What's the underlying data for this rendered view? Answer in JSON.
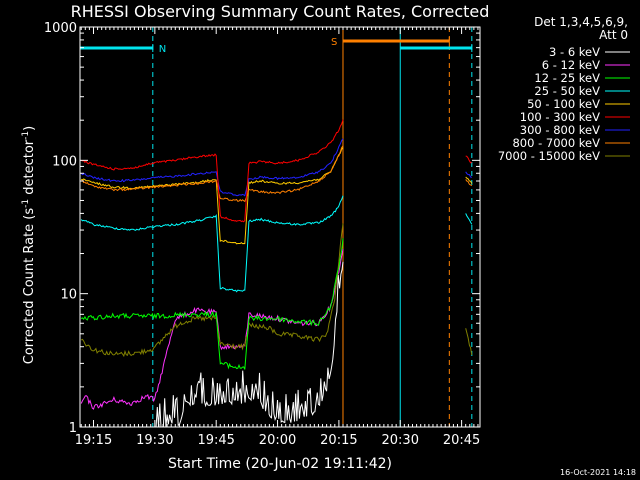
{
  "chart_data": {
    "type": "line",
    "title": "RHESSI Observing Summary Count Rates, Corrected",
    "xlabel": "Start Time (20-Jun-02 19:11:42)",
    "ylabel_main": "Corrected Count Rate (s",
    "ylabel_sup1": "-1",
    "ylabel_mid": " detector",
    "ylabel_sup2": "-1",
    "ylabel_end": ")",
    "y_scale": "log",
    "ylim": [
      1,
      1000
    ],
    "xlim": [
      "19:11:42",
      "20:49:30"
    ],
    "x_ticks": [
      "19:15",
      "19:30",
      "19:45",
      "20:00",
      "20:15",
      "20:30",
      "20:45"
    ],
    "y_ticks": [
      "1",
      "10",
      "100",
      "1000"
    ],
    "timestamp": "16-Oct-2021 14:18",
    "legend_title_1": "Det 1,3,4,5,6,9,",
    "legend_title_2": "Att 0",
    "legend_position": "top-right",
    "markers": {
      "night_label": "N",
      "saa_label": "S",
      "night_color": "#00e5ee",
      "saa_color": "#ff8000",
      "night_intervals": [
        [
          "19:11:42",
          "19:29:30"
        ],
        [
          "20:30:00",
          "20:47:30"
        ]
      ],
      "saa_interval": [
        "20:16:00",
        "20:42:00"
      ],
      "solid_lines": [
        {
          "t": "19:11:42",
          "color": "#00e5ee"
        },
        {
          "t": "20:16:00",
          "color": "#ff8000"
        },
        {
          "t": "20:30:00",
          "color": "#00e5ee"
        }
      ],
      "dashed_lines": [
        {
          "t": "19:29:30",
          "color": "#00e5ee"
        },
        {
          "t": "20:42:00",
          "color": "#ff8000"
        },
        {
          "t": "20:47:30",
          "color": "#00e5ee"
        }
      ]
    },
    "series": [
      {
        "name": "3 - 6 keV",
        "color": "#ffffff",
        "points": [
          [
            "19:13:00",
            1.0
          ],
          [
            "19:30:00",
            1.0
          ],
          [
            "19:36:00",
            1.05
          ],
          [
            "19:37:30",
            1.5
          ],
          [
            "19:45:00",
            1.5
          ],
          [
            "19:55:00",
            1.6
          ],
          [
            "20:00:00",
            1.05
          ],
          [
            "20:08:00",
            1.2
          ],
          [
            "20:12:00",
            1.8
          ],
          [
            "20:13:30",
            3
          ],
          [
            "20:14:30",
            7
          ],
          [
            "20:15:30",
            14
          ],
          [
            "20:16:00",
            17
          ]
        ]
      },
      {
        "name": "6 - 12 keV",
        "color": "#ff33ff",
        "points": [
          [
            "19:12:00",
            1.5
          ],
          [
            "19:13:00",
            1.7
          ],
          [
            "19:15:00",
            1.4
          ],
          [
            "19:20:00",
            1.6
          ],
          [
            "19:24:00",
            1.5
          ],
          [
            "19:28:00",
            1.7
          ],
          [
            "19:30:00",
            1.6
          ],
          [
            "19:35:00",
            6.5
          ],
          [
            "19:40:00",
            7.5
          ],
          [
            "19:45:00",
            7.2
          ],
          [
            "19:46:00",
            4
          ],
          [
            "19:52:00",
            4
          ],
          [
            "19:53:00",
            7
          ],
          [
            "20:00:00",
            6.5
          ],
          [
            "20:05:00",
            6
          ],
          [
            "20:10:00",
            6
          ],
          [
            "20:13:00",
            8
          ],
          [
            "20:15:00",
            15
          ],
          [
            "20:16:00",
            22
          ]
        ]
      },
      {
        "name": "12 - 25 keV",
        "color": "#00ff00",
        "points": [
          [
            "19:12:00",
            6.5
          ],
          [
            "19:20:00",
            6.8
          ],
          [
            "19:30:00",
            6.8
          ],
          [
            "19:40:00",
            7
          ],
          [
            "19:45:00",
            7
          ],
          [
            "19:46:00",
            3
          ],
          [
            "19:50:00",
            2.8
          ],
          [
            "19:52:00",
            2.8
          ],
          [
            "19:53:00",
            6.5
          ],
          [
            "20:00:00",
            6.5
          ],
          [
            "20:05:00",
            6.2
          ],
          [
            "20:10:00",
            6
          ],
          [
            "20:13:00",
            8
          ],
          [
            "20:15:00",
            16
          ],
          [
            "20:16:00",
            25
          ]
        ]
      },
      {
        "name": "25 - 50 keV",
        "color": "#00ffff",
        "points": [
          [
            "19:12:00",
            36
          ],
          [
            "19:15:00",
            33
          ],
          [
            "19:20:00",
            31
          ],
          [
            "19:25:00",
            30
          ],
          [
            "19:30:00",
            32
          ],
          [
            "19:35:00",
            33
          ],
          [
            "19:40:00",
            35
          ],
          [
            "19:45:00",
            38
          ],
          [
            "19:46:00",
            11
          ],
          [
            "19:50:00",
            10.5
          ],
          [
            "19:52:00",
            10.5
          ],
          [
            "19:53:00",
            35
          ],
          [
            "19:56:00",
            36
          ],
          [
            "20:00:00",
            34
          ],
          [
            "20:05:00",
            33
          ],
          [
            "20:10:00",
            34
          ],
          [
            "20:13:00",
            38
          ],
          [
            "20:15:00",
            45
          ],
          [
            "20:16:00",
            55
          ],
          [
            "20:46:00",
            40
          ],
          [
            "20:47:30",
            33
          ]
        ]
      },
      {
        "name": "50 - 100 keV",
        "color": "#ffcc00",
        "points": [
          [
            "19:12:00",
            72
          ],
          [
            "19:15:00",
            68
          ],
          [
            "19:20:00",
            63
          ],
          [
            "19:25:00",
            62
          ],
          [
            "19:30:00",
            64
          ],
          [
            "19:35:00",
            66
          ],
          [
            "19:40:00",
            68
          ],
          [
            "19:45:00",
            72
          ],
          [
            "19:46:00",
            25
          ],
          [
            "19:50:00",
            24
          ],
          [
            "19:52:00",
            24
          ],
          [
            "19:53:00",
            68
          ],
          [
            "19:56:00",
            70
          ],
          [
            "20:00:00",
            67
          ],
          [
            "20:05:00",
            68
          ],
          [
            "20:10:00",
            72
          ],
          [
            "20:13:00",
            82
          ],
          [
            "20:15:00",
            110
          ],
          [
            "20:16:00",
            125
          ],
          [
            "20:46:00",
            75
          ],
          [
            "20:47:30",
            68
          ]
        ]
      },
      {
        "name": "100 - 300 keV",
        "color": "#ff0000",
        "points": [
          [
            "19:12:00",
            100
          ],
          [
            "19:15:00",
            93
          ],
          [
            "19:20:00",
            86
          ],
          [
            "19:25:00",
            88
          ],
          [
            "19:30:00",
            96
          ],
          [
            "19:35:00",
            100
          ],
          [
            "19:40:00",
            106
          ],
          [
            "19:45:00",
            110
          ],
          [
            "19:46:00",
            38
          ],
          [
            "19:50:00",
            35
          ],
          [
            "19:52:00",
            35
          ],
          [
            "19:53:00",
            95
          ],
          [
            "19:56:00",
            98
          ],
          [
            "20:00:00",
            95
          ],
          [
            "20:05:00",
            100
          ],
          [
            "20:10:00",
            115
          ],
          [
            "20:13:00",
            135
          ],
          [
            "20:15:00",
            170
          ],
          [
            "20:16:00",
            200
          ],
          [
            "20:46:00",
            108
          ],
          [
            "20:47:30",
            95
          ]
        ]
      },
      {
        "name": "300 - 800 keV",
        "color": "#2222ff",
        "points": [
          [
            "19:12:00",
            80
          ],
          [
            "19:15:00",
            74
          ],
          [
            "19:20:00",
            70
          ],
          [
            "19:25:00",
            71
          ],
          [
            "19:30:00",
            74
          ],
          [
            "19:35:00",
            76
          ],
          [
            "19:40:00",
            79
          ],
          [
            "19:45:00",
            82
          ],
          [
            "19:46:00",
            58
          ],
          [
            "19:50:00",
            55
          ],
          [
            "19:52:00",
            55
          ],
          [
            "19:53:00",
            72
          ],
          [
            "19:56:00",
            75
          ],
          [
            "20:00:00",
            73
          ],
          [
            "20:05:00",
            74
          ],
          [
            "20:10:00",
            82
          ],
          [
            "20:13:00",
            95
          ],
          [
            "20:15:00",
            125
          ],
          [
            "20:16:00",
            145
          ],
          [
            "20:46:00",
            82
          ],
          [
            "20:47:30",
            74
          ]
        ]
      },
      {
        "name": "800 - 7000 keV",
        "color": "#ff8000",
        "points": [
          [
            "19:12:00",
            70
          ],
          [
            "19:15:00",
            64
          ],
          [
            "19:20:00",
            60
          ],
          [
            "19:25:00",
            61
          ],
          [
            "19:30:00",
            63
          ],
          [
            "19:35:00",
            65
          ],
          [
            "19:40:00",
            67
          ],
          [
            "19:45:00",
            70
          ],
          [
            "19:46:00",
            52
          ],
          [
            "19:50:00",
            50
          ],
          [
            "19:52:00",
            50
          ],
          [
            "19:53:00",
            60
          ],
          [
            "19:56:00",
            58
          ],
          [
            "20:00:00",
            57
          ],
          [
            "20:05:00",
            60
          ],
          [
            "20:10:00",
            70
          ],
          [
            "20:13:00",
            82
          ],
          [
            "20:15:00",
            110
          ],
          [
            "20:16:00",
            130
          ],
          [
            "20:46:00",
            72
          ],
          [
            "20:47:30",
            64
          ]
        ]
      },
      {
        "name": "7000 - 15000 keV",
        "color": "#808000",
        "points": [
          [
            "19:12:00",
            4.5
          ],
          [
            "19:15:00",
            3.8
          ],
          [
            "19:20:00",
            3.5
          ],
          [
            "19:26:00",
            3.6
          ],
          [
            "19:30:00",
            3.9
          ],
          [
            "19:33:00",
            5
          ],
          [
            "19:36:00",
            6
          ],
          [
            "19:40:00",
            6.5
          ],
          [
            "19:45:00",
            6.5
          ],
          [
            "19:46:00",
            4.2
          ],
          [
            "19:50:00",
            4
          ],
          [
            "19:52:00",
            4
          ],
          [
            "19:53:00",
            5.8
          ],
          [
            "19:58:00",
            5.5
          ],
          [
            "20:00:00",
            5
          ],
          [
            "20:05:00",
            4.8
          ],
          [
            "20:10:00",
            4.5
          ],
          [
            "20:12:00",
            5
          ],
          [
            "20:14:00",
            9
          ],
          [
            "20:15:00",
            18
          ],
          [
            "20:16:00",
            35
          ],
          [
            "20:46:00",
            5.5
          ],
          [
            "20:47:30",
            3.5
          ]
        ]
      }
    ]
  }
}
